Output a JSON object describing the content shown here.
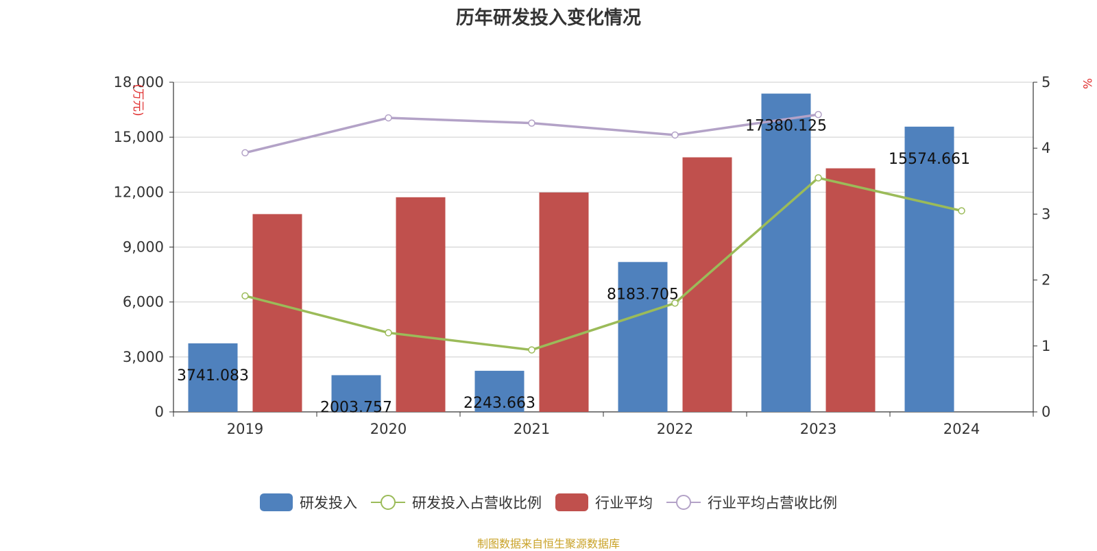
{
  "chart_data": {
    "type": "bar",
    "title": "历年研发投入变化情况",
    "categories": [
      "2019",
      "2020",
      "2021",
      "2022",
      "2023",
      "2024"
    ],
    "y_left": {
      "label": "(万元)",
      "ylim": [
        0,
        18000
      ],
      "ticks": [
        "0",
        "3,000",
        "6,000",
        "9,000",
        "12,000",
        "15,000",
        "18,000"
      ]
    },
    "y_right": {
      "label": "%",
      "ylim": [
        0,
        5
      ],
      "ticks": [
        "0",
        "1",
        "2",
        "3",
        "4",
        "5"
      ]
    },
    "series": [
      {
        "name": "研发投入",
        "kind": "bar",
        "axis": "left",
        "color": "#4f81bd",
        "values": [
          3741.083,
          2003.757,
          2243.663,
          8183.705,
          17380.125,
          15574.661
        ],
        "labels": [
          "3741.083",
          "2003.757",
          "2243.663",
          "8183.705",
          "17380.125",
          "15574.661"
        ]
      },
      {
        "name": "研发投入占营收比例",
        "kind": "line",
        "axis": "right",
        "color": "#9bbb59",
        "values": [
          1.76,
          1.2,
          0.94,
          1.65,
          3.55,
          3.05
        ]
      },
      {
        "name": "行业平均",
        "kind": "bar",
        "axis": "left",
        "color": "#c0504d",
        "values": [
          10800,
          11720,
          11980,
          13900,
          13300,
          null
        ]
      },
      {
        "name": "行业平均占营收比例",
        "kind": "line",
        "axis": "right",
        "color": "#b3a2c7",
        "values": [
          3.93,
          4.46,
          4.38,
          4.2,
          4.51,
          null
        ]
      }
    ],
    "grid": true,
    "legend_position": "bottom"
  },
  "source_note": "制图数据来自恒生聚源数据库"
}
